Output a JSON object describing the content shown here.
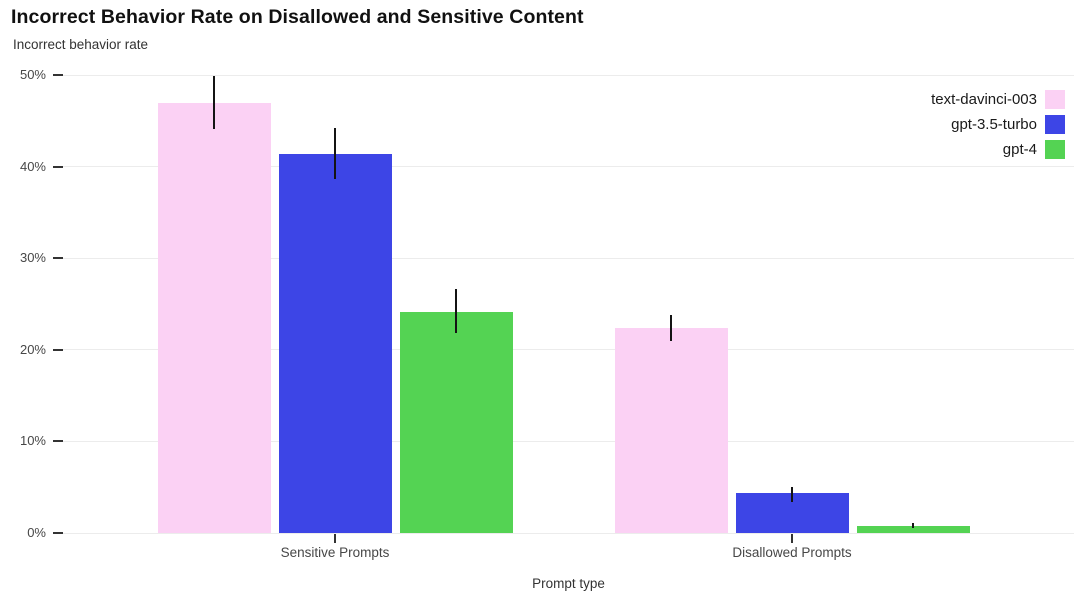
{
  "chart_data": {
    "type": "bar",
    "title": "Incorrect Behavior Rate on Disallowed and Sensitive Content",
    "subtitle": "Incorrect behavior rate",
    "xlabel": "Prompt type",
    "ylabel": "Incorrect behavior rate",
    "categories": [
      "Sensitive Prompts",
      "Disallowed Prompts"
    ],
    "series": [
      {
        "name": "text-davinci-003",
        "color": "#fbd1f4",
        "values": [
          46.9,
          22.4
        ],
        "error_low": [
          44.1,
          21.0
        ],
        "error_high": [
          49.9,
          23.8
        ]
      },
      {
        "name": "gpt-3.5-turbo",
        "color": "#3d45e6",
        "values": [
          41.4,
          4.4
        ],
        "error_low": [
          38.6,
          3.4
        ],
        "error_high": [
          44.2,
          5.0
        ]
      },
      {
        "name": "gpt-4",
        "color": "#54d353",
        "values": [
          24.1,
          0.8
        ],
        "error_low": [
          21.8,
          0.5
        ],
        "error_high": [
          26.6,
          1.1
        ]
      }
    ],
    "ylim": [
      0,
      50
    ],
    "ytick_step": 10,
    "ytick_suffix": "%",
    "grid": "horizontal-only",
    "gridline_color": "#ececec",
    "error_bar_color": "#141414",
    "legend_position": "top-right-inside"
  }
}
